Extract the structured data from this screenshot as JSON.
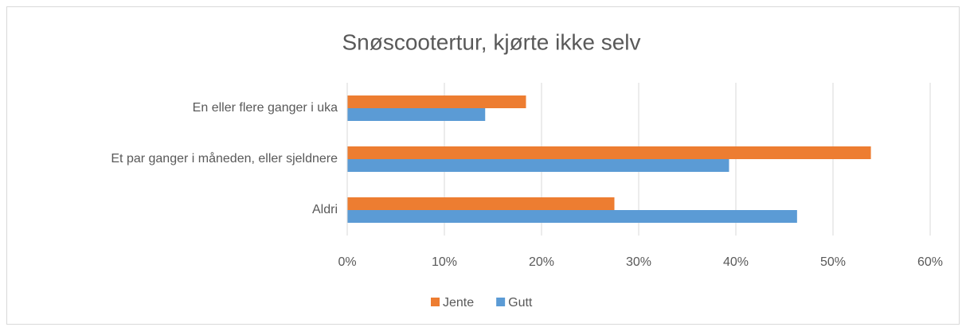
{
  "chart_data": {
    "type": "hbar",
    "title": "Snøscootertur, kjørte ikke selv",
    "categories": [
      "En eller flere ganger i uka",
      "Et par ganger i måneden, eller sjeldnere",
      "Aldri"
    ],
    "series": [
      {
        "name": "Jente",
        "color": "#ed7d31",
        "values": [
          18.4,
          53.9,
          27.5
        ]
      },
      {
        "name": "Gutt",
        "color": "#5b9bd5",
        "values": [
          14.2,
          39.3,
          46.3
        ]
      }
    ],
    "xlim": [
      0,
      60
    ],
    "xticks": [
      {
        "value": 0,
        "label": "0%"
      },
      {
        "value": 10,
        "label": "10%"
      },
      {
        "value": 20,
        "label": "20%"
      },
      {
        "value": 30,
        "label": "30%"
      },
      {
        "value": 40,
        "label": "40%"
      },
      {
        "value": 50,
        "label": "50%"
      },
      {
        "value": 60,
        "label": "60%"
      }
    ],
    "grid": true,
    "legend": "bottom"
  }
}
